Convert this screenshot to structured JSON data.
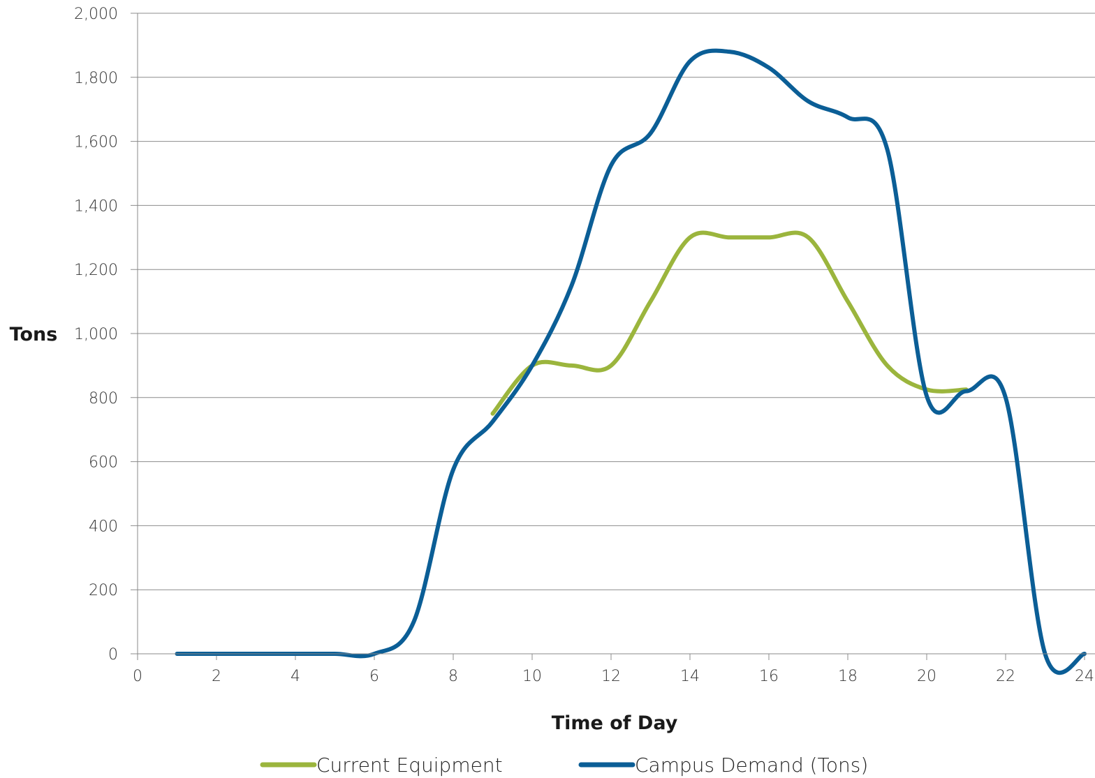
{
  "chart_data": {
    "type": "line",
    "xlabel": "Time of Day",
    "ylabel": "Tons",
    "xlim": [
      0,
      24
    ],
    "ylim": [
      0,
      2000
    ],
    "x_ticks": [
      "0",
      "2",
      "4",
      "6",
      "8",
      "10",
      "12",
      "14",
      "16",
      "18",
      "20",
      "22",
      "24"
    ],
    "y_ticks": [
      "0",
      "200",
      "400",
      "600",
      "800",
      "1,000",
      "1,200",
      "1,400",
      "1,600",
      "1,800",
      "2,000"
    ],
    "grid": "horizontal",
    "legend_position": "bottom",
    "series": [
      {
        "name": "Current Equipment",
        "color": "#9BB53D",
        "x": [
          9,
          10,
          11,
          12,
          13,
          14,
          15,
          16,
          17,
          18,
          19,
          20,
          21
        ],
        "y": [
          750,
          900,
          900,
          900,
          1100,
          1300,
          1300,
          1300,
          1300,
          1100,
          900,
          825,
          825
        ]
      },
      {
        "name": "Campus Demand (Tons)",
        "color": "#0B5E96",
        "x": [
          1,
          2,
          3,
          4,
          5,
          6,
          7,
          8,
          9,
          10,
          11,
          12,
          13,
          14,
          15,
          16,
          17,
          18,
          19,
          20,
          21,
          22,
          23,
          24
        ],
        "y": [
          0,
          0,
          0,
          0,
          0,
          0,
          100,
          575,
          725,
          900,
          1150,
          1525,
          1625,
          1850,
          1880,
          1830,
          1725,
          1675,
          1575,
          805,
          820,
          800,
          0,
          0
        ]
      }
    ]
  }
}
